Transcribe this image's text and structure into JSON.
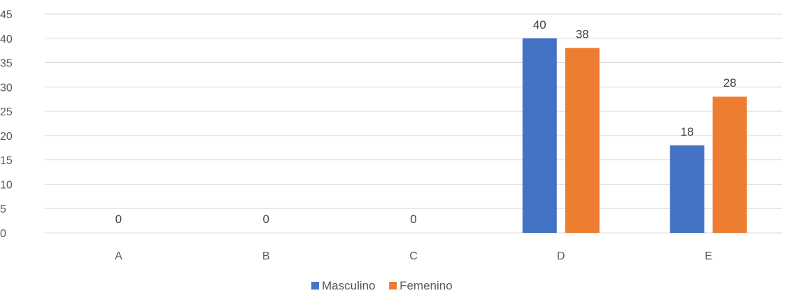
{
  "chart_data": {
    "type": "bar",
    "categories": [
      "A",
      "B",
      "C",
      "D",
      "E"
    ],
    "series": [
      {
        "name": "Masculino",
        "values": [
          0,
          0,
          0,
          40,
          18
        ],
        "color": "#4472C4"
      },
      {
        "name": "Femenino",
        "values": [
          0,
          0,
          0,
          38,
          28
        ],
        "color": "#ED7D31"
      }
    ],
    "y_ticks": [
      "0",
      "5",
      "10",
      "15",
      "20",
      "25",
      "30",
      "35",
      "40",
      "45"
    ],
    "ylim": [
      0,
      45
    ],
    "grid": true,
    "legend_position": "bottom",
    "data_labels": [
      "0",
      "0",
      "0",
      "40",
      "38",
      "18",
      "28"
    ]
  }
}
